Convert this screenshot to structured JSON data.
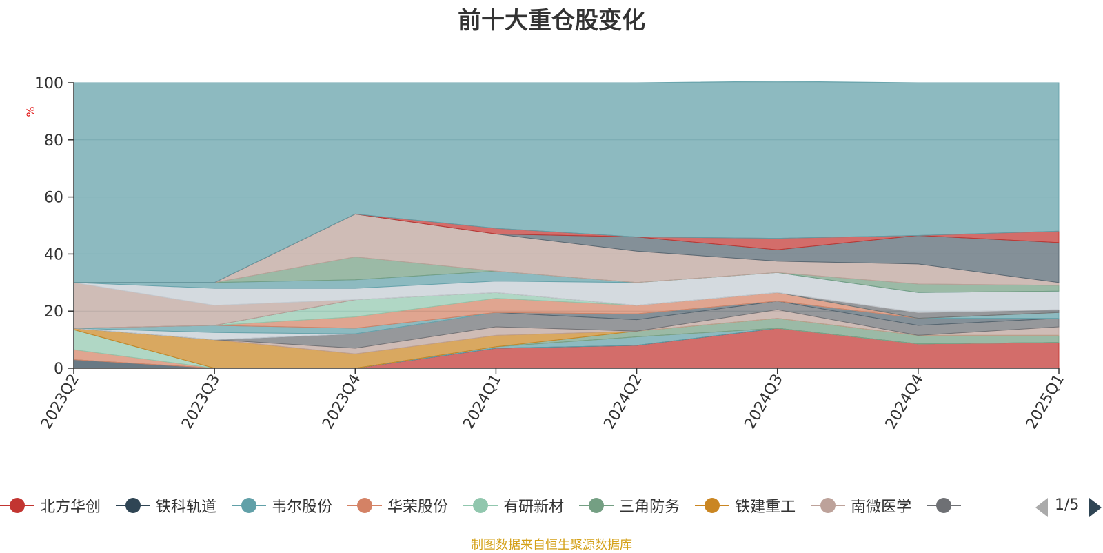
{
  "chart_data": {
    "type": "area",
    "title": "前十大重仓股变化",
    "ylabel": "%",
    "ylim": [
      0,
      100
    ],
    "yticks": [
      0,
      20,
      40,
      60,
      80,
      100
    ],
    "stacked": true,
    "categories": [
      "2023Q2",
      "2023Q3",
      "2023Q4",
      "2024Q1",
      "2024Q2",
      "2024Q3",
      "2024Q4",
      "2025Q1"
    ],
    "series": [
      {
        "name": "北方华创",
        "color": "#c23531",
        "values": [
          0,
          0,
          0,
          7,
          8,
          14,
          8.5,
          9
        ]
      },
      {
        "name": "铁科轨道",
        "color": "#2f4554",
        "values": [
          3,
          0,
          0,
          0,
          0,
          0,
          0,
          0
        ]
      },
      {
        "name": "韦尔股份",
        "color": "#61a0a8",
        "values": [
          0,
          0,
          0,
          0.5,
          3,
          0,
          0,
          0
        ]
      },
      {
        "name": "华荣股份",
        "color": "#d48265",
        "values": [
          3.5,
          0,
          0,
          0,
          0,
          0,
          0,
          0
        ]
      },
      {
        "name": "有研新材",
        "color": "#91c7ae",
        "values": [
          7,
          0,
          0,
          0,
          0,
          0,
          0,
          0
        ]
      },
      {
        "name": "三角防务",
        "color": "#749f83",
        "values": [
          0,
          0,
          0,
          0,
          2,
          3.5,
          3,
          2.5
        ]
      },
      {
        "name": "铁建重工",
        "color": "#ca8622",
        "values": [
          0.5,
          10,
          5,
          4,
          0,
          0,
          0,
          0
        ]
      },
      {
        "name": "南微医学",
        "color": "#bda29a",
        "values": [
          0,
          0,
          2,
          3,
          0,
          3,
          0,
          3
        ]
      },
      {
        "name": "",
        "color": "#6e7074",
        "values": [
          0,
          0,
          5,
          5,
          4,
          3,
          3.5,
          3
        ]
      },
      {
        "name": "",
        "color": "#546570",
        "values": [
          0,
          0,
          0,
          0,
          2,
          0,
          2.5,
          0
        ]
      },
      {
        "name": "",
        "color": "#c4ccd3",
        "values": [
          0,
          2.5,
          0,
          0,
          0,
          0,
          0,
          0
        ]
      },
      {
        "name": "",
        "color": "#61a0a8",
        "values": [
          0,
          2.5,
          2,
          0,
          0,
          0,
          0,
          2
        ]
      },
      {
        "name": "",
        "color": "#d48265",
        "values": [
          0,
          0,
          4,
          5,
          3,
          3,
          0,
          0
        ]
      },
      {
        "name": "",
        "color": "#91c7ae",
        "values": [
          0,
          0,
          6,
          2,
          0,
          0,
          0,
          0
        ]
      },
      {
        "name": "",
        "color": "#6e7074",
        "values": [
          0,
          0,
          0,
          0,
          0,
          0,
          2,
          1
        ]
      },
      {
        "name": "",
        "color": "#bda29a",
        "values": [
          16,
          7,
          0,
          0,
          0,
          0,
          0,
          0
        ]
      },
      {
        "name": "",
        "color": "#c4ccd3",
        "values": [
          0,
          6,
          4,
          4,
          8,
          7,
          7,
          6.5
        ]
      },
      {
        "name": "",
        "color": "#61a0a8",
        "values": [
          0,
          2,
          3,
          3.5,
          0,
          0,
          0,
          0
        ]
      },
      {
        "name": "",
        "color": "#749f83",
        "values": [
          0,
          0,
          8,
          0,
          0,
          0,
          3,
          2
        ]
      },
      {
        "name": "",
        "color": "#bda29a",
        "values": [
          0,
          0,
          15,
          13,
          11,
          4,
          7,
          1
        ]
      },
      {
        "name": "",
        "color": "#546570",
        "values": [
          0,
          0,
          0,
          0,
          5,
          4,
          10,
          14
        ]
      },
      {
        "name": "",
        "color": "#c23531",
        "values": [
          0,
          0,
          0,
          2,
          0,
          4,
          0,
          4
        ]
      },
      {
        "name": "",
        "color": "#61a0a8",
        "values": [
          70,
          70,
          46,
          51,
          54,
          55,
          53.5,
          52
        ]
      }
    ]
  },
  "legend": {
    "items": [
      {
        "name": "北方华创",
        "color": "#c23531"
      },
      {
        "name": "铁科轨道",
        "color": "#2f4554"
      },
      {
        "name": "韦尔股份",
        "color": "#61a0a8"
      },
      {
        "name": "华荣股份",
        "color": "#d48265"
      },
      {
        "name": "有研新材",
        "color": "#91c7ae"
      },
      {
        "name": "三角防务",
        "color": "#749f83"
      },
      {
        "name": "铁建重工",
        "color": "#ca8622"
      },
      {
        "name": "南微医学",
        "color": "#bda29a"
      },
      {
        "name": "",
        "color": "#6e7074"
      }
    ],
    "page_indicator": "1/5"
  },
  "source_note": "制图数据来自恒生聚源数据库"
}
